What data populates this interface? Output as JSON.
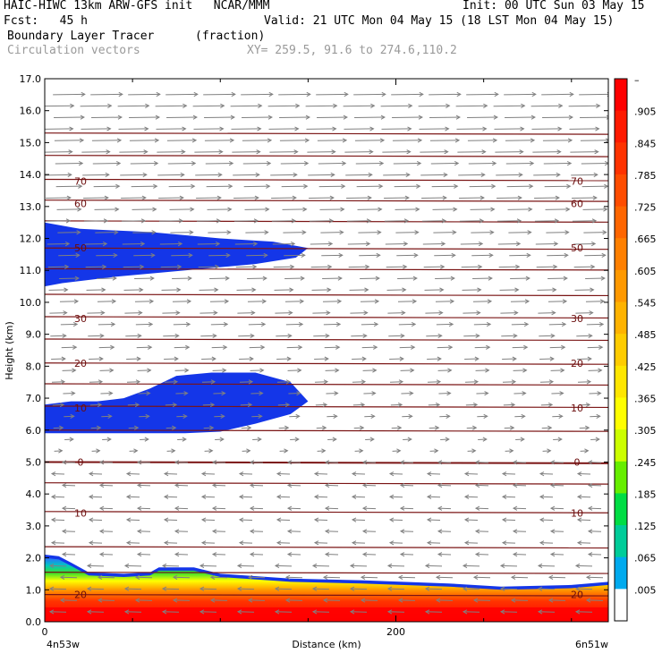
{
  "header": {
    "line1_left": "HAIC-HIWC 13km ARW-GFS init   NCAR/MMM",
    "line1_right": "Init: 00 UTC Sun 03 May 15",
    "fcst": "Fcst:   45 h",
    "valid": "Valid: 21 UTC Mon 04 May 15 (18 LST Mon 04 May 15)",
    "field": "Boundary Layer Tracer",
    "field_units": "(fraction)",
    "vectors": "Circulation vectors",
    "xy": "XY= 259.5, 91.6 to 274.6,110.2"
  },
  "colors": {
    "tracer_blue": "#1436e8",
    "contour": "#7a1414",
    "arrow": "#808080"
  },
  "chart_data": {
    "type": "heatmap",
    "xlabel": "Distance (km)",
    "ylabel": "Height (km)",
    "xlim": [
      0,
      321
    ],
    "ylim": [
      0,
      17
    ],
    "x_ticks": [
      {
        "value": 0,
        "label": "0"
      },
      {
        "value": 200,
        "label": "200"
      }
    ],
    "x_end_labels": {
      "left": "4n53w",
      "right": "6n51w"
    },
    "y_ticks": [
      0,
      1,
      2,
      3,
      4,
      5,
      6,
      7,
      8,
      9,
      10,
      11,
      12,
      13,
      14,
      15,
      16,
      17
    ],
    "y_tick_labels": [
      "0.0",
      "1.0",
      "2.0",
      "3.0",
      "4.0",
      "5.0",
      "6.0",
      "7.0",
      "8.0",
      "9.0",
      "10.0",
      "11.0",
      "12.0",
      "13.0",
      "14.0",
      "15.0",
      "16.0",
      "17.0"
    ],
    "colorbar": {
      "labels": [
        "–",
        ".905",
        ".845",
        ".785",
        ".725",
        ".665",
        ".605",
        ".545",
        ".485",
        ".425",
        ".365",
        ".305",
        ".245",
        ".185",
        ".125",
        ".065",
        ".005"
      ],
      "colors": [
        "#ff0000",
        "#ff1a00",
        "#ff3300",
        "#ff4d00",
        "#ff6600",
        "#ff8000",
        "#ff9900",
        "#ffb300",
        "#ffcc00",
        "#ffe600",
        "#ffff00",
        "#ccff00",
        "#66ee00",
        "#00dd44",
        "#00cc99",
        "#00aaee",
        "#ffffff"
      ]
    },
    "temperature_contours": [
      {
        "label": "70",
        "z": 13.8
      },
      {
        "label": "60",
        "z": 13.1
      },
      {
        "label": "50",
        "z": 11.7
      },
      {
        "label": "30",
        "z": 9.5
      },
      {
        "label": "20",
        "z": 8.1
      },
      {
        "label": "10",
        "z": 6.7
      },
      {
        "label": "0",
        "z": 5.0
      },
      {
        "label": "10",
        "z": 3.4
      },
      {
        "label": "20",
        "z": 0.85
      }
    ],
    "tracer_regions": [
      {
        "name": "upper",
        "fraction": 0.005,
        "z_range": [
          10.5,
          12.5
        ],
        "x_extent": [
          0,
          150
        ]
      },
      {
        "name": "middle",
        "fraction": 0.005,
        "z_range": [
          5.9,
          7.8
        ],
        "x_extent": [
          0,
          150
        ]
      },
      {
        "name": "boundary-layer",
        "fraction": 0.905,
        "z_range": [
          0,
          2.1
        ],
        "x_extent": [
          0,
          321
        ]
      }
    ],
    "wind": "westerly aloft above ~5 km, easterly below ~5 km"
  }
}
